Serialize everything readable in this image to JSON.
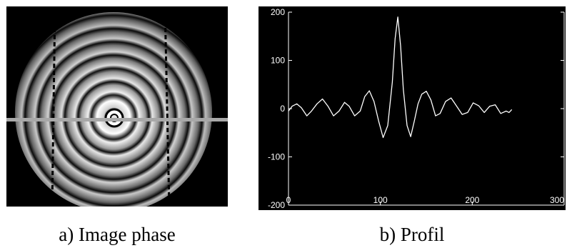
{
  "captions": {
    "a": "a) Image phase",
    "b": "b) Profil"
  },
  "chart_data": {
    "type": "line",
    "title": "",
    "xlabel": "",
    "ylabel": "",
    "xlim": [
      0,
      300
    ],
    "ylim": [
      -200,
      200
    ],
    "xticks": [
      "0",
      "100",
      "200",
      "300"
    ],
    "yticks": [
      "200",
      "100",
      "0",
      "-100",
      "-200"
    ],
    "background": "#000000",
    "line_color": "#ffffff",
    "grid": false,
    "series": [
      {
        "name": "",
        "x": [
          0,
          4,
          9,
          14,
          20,
          25,
          31,
          37,
          43,
          49,
          55,
          61,
          66,
          72,
          78,
          83,
          88,
          93,
          98,
          103,
          108,
          113,
          116,
          119,
          122,
          125,
          129,
          133,
          137,
          141,
          145,
          150,
          155,
          160,
          165,
          171,
          177,
          183,
          189,
          195,
          201,
          207,
          213,
          219,
          225,
          231,
          237,
          240,
          243
        ],
        "y": [
          -5,
          5,
          10,
          2,
          -15,
          -5,
          10,
          20,
          5,
          -15,
          -5,
          13,
          5,
          -15,
          -5,
          25,
          37,
          15,
          -25,
          -60,
          -35,
          55,
          145,
          190,
          130,
          40,
          -35,
          -58,
          -25,
          10,
          30,
          36,
          18,
          -15,
          -10,
          15,
          22,
          5,
          -12,
          -8,
          12,
          6,
          -8,
          5,
          8,
          -10,
          -5,
          -8,
          -2
        ]
      }
    ]
  },
  "phase_image": {
    "type": "concentric-fringe-phase-map",
    "colors": {
      "background": "#000000",
      "profile_line": "#a8a8a8"
    }
  }
}
